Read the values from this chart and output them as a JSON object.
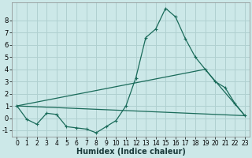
{
  "xlabel": "Humidex (Indice chaleur)",
  "ylabel": "",
  "bg_color": "#cce8e8",
  "grid_color": "#b0d0d0",
  "line_color": "#1a6b5a",
  "xlim": [
    -0.5,
    23.5
  ],
  "ylim": [
    -1.5,
    9.5
  ],
  "xticks": [
    0,
    1,
    2,
    3,
    4,
    5,
    6,
    7,
    8,
    9,
    10,
    11,
    12,
    13,
    14,
    15,
    16,
    17,
    18,
    19,
    20,
    21,
    22,
    23
  ],
  "yticks": [
    -1,
    0,
    1,
    2,
    3,
    4,
    5,
    6,
    7,
    8
  ],
  "series0_x": [
    0,
    1,
    2,
    3,
    4,
    5,
    6,
    7,
    8,
    9,
    10,
    11,
    12,
    13,
    14,
    15,
    16,
    17,
    18,
    19,
    20,
    21,
    22,
    23
  ],
  "series0_y": [
    1.0,
    -0.1,
    -0.5,
    0.4,
    0.3,
    -0.7,
    -0.8,
    -0.9,
    -1.2,
    -0.7,
    -0.2,
    1.0,
    3.3,
    6.6,
    7.3,
    9.0,
    8.3,
    6.5,
    5.0,
    4.0,
    3.0,
    2.5,
    1.2,
    0.2
  ],
  "series1_x": [
    0,
    23
  ],
  "series1_y": [
    1.0,
    0.2
  ],
  "series2_x": [
    0,
    19,
    23
  ],
  "series2_y": [
    1.0,
    4.0,
    0.2
  ],
  "tick_fontsize": 6,
  "xlabel_fontsize": 7
}
